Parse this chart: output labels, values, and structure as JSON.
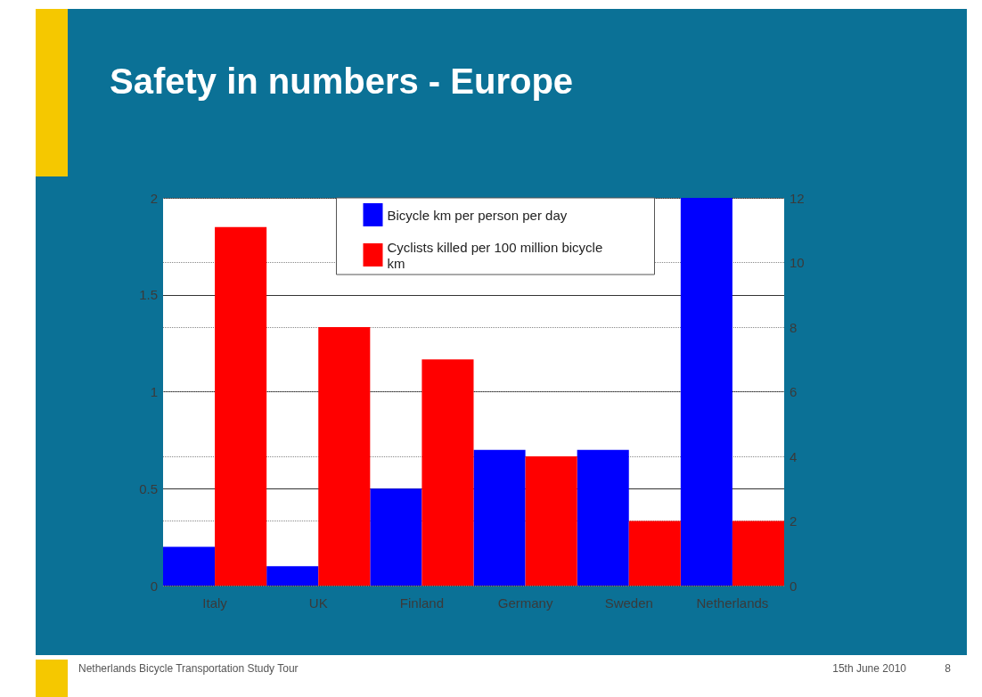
{
  "chart_data": {
    "type": "bar",
    "title": "Safety in numbers - Europe",
    "categories": [
      "Italy",
      "UK",
      "Finland",
      "Germany",
      "Sweden",
      "Netherlands"
    ],
    "series": [
      {
        "name": "Bicycle km per person per day",
        "color": "#0000ff",
        "values": [
          0.2,
          0.1,
          0.5,
          0.7,
          0.7,
          2
        ]
      },
      {
        "name": "Cyclists killed per 100 million bicycle km",
        "color": "#ff0000",
        "axis": "y2",
        "values": [
          11.1,
          8,
          7,
          4,
          2,
          2
        ]
      }
    ],
    "ylim": [
      0,
      2
    ],
    "yticks": [
      0,
      0.5,
      1,
      1.5,
      2
    ],
    "y2lim": [
      0,
      12
    ],
    "y2ticks": [
      0,
      2,
      4,
      6,
      8,
      10,
      12
    ],
    "grid": "y",
    "legend": "top",
    "annotations": [
      "Netherlands Bicycle Transportation Study Tour",
      "15th June 2010",
      "8"
    ]
  }
}
